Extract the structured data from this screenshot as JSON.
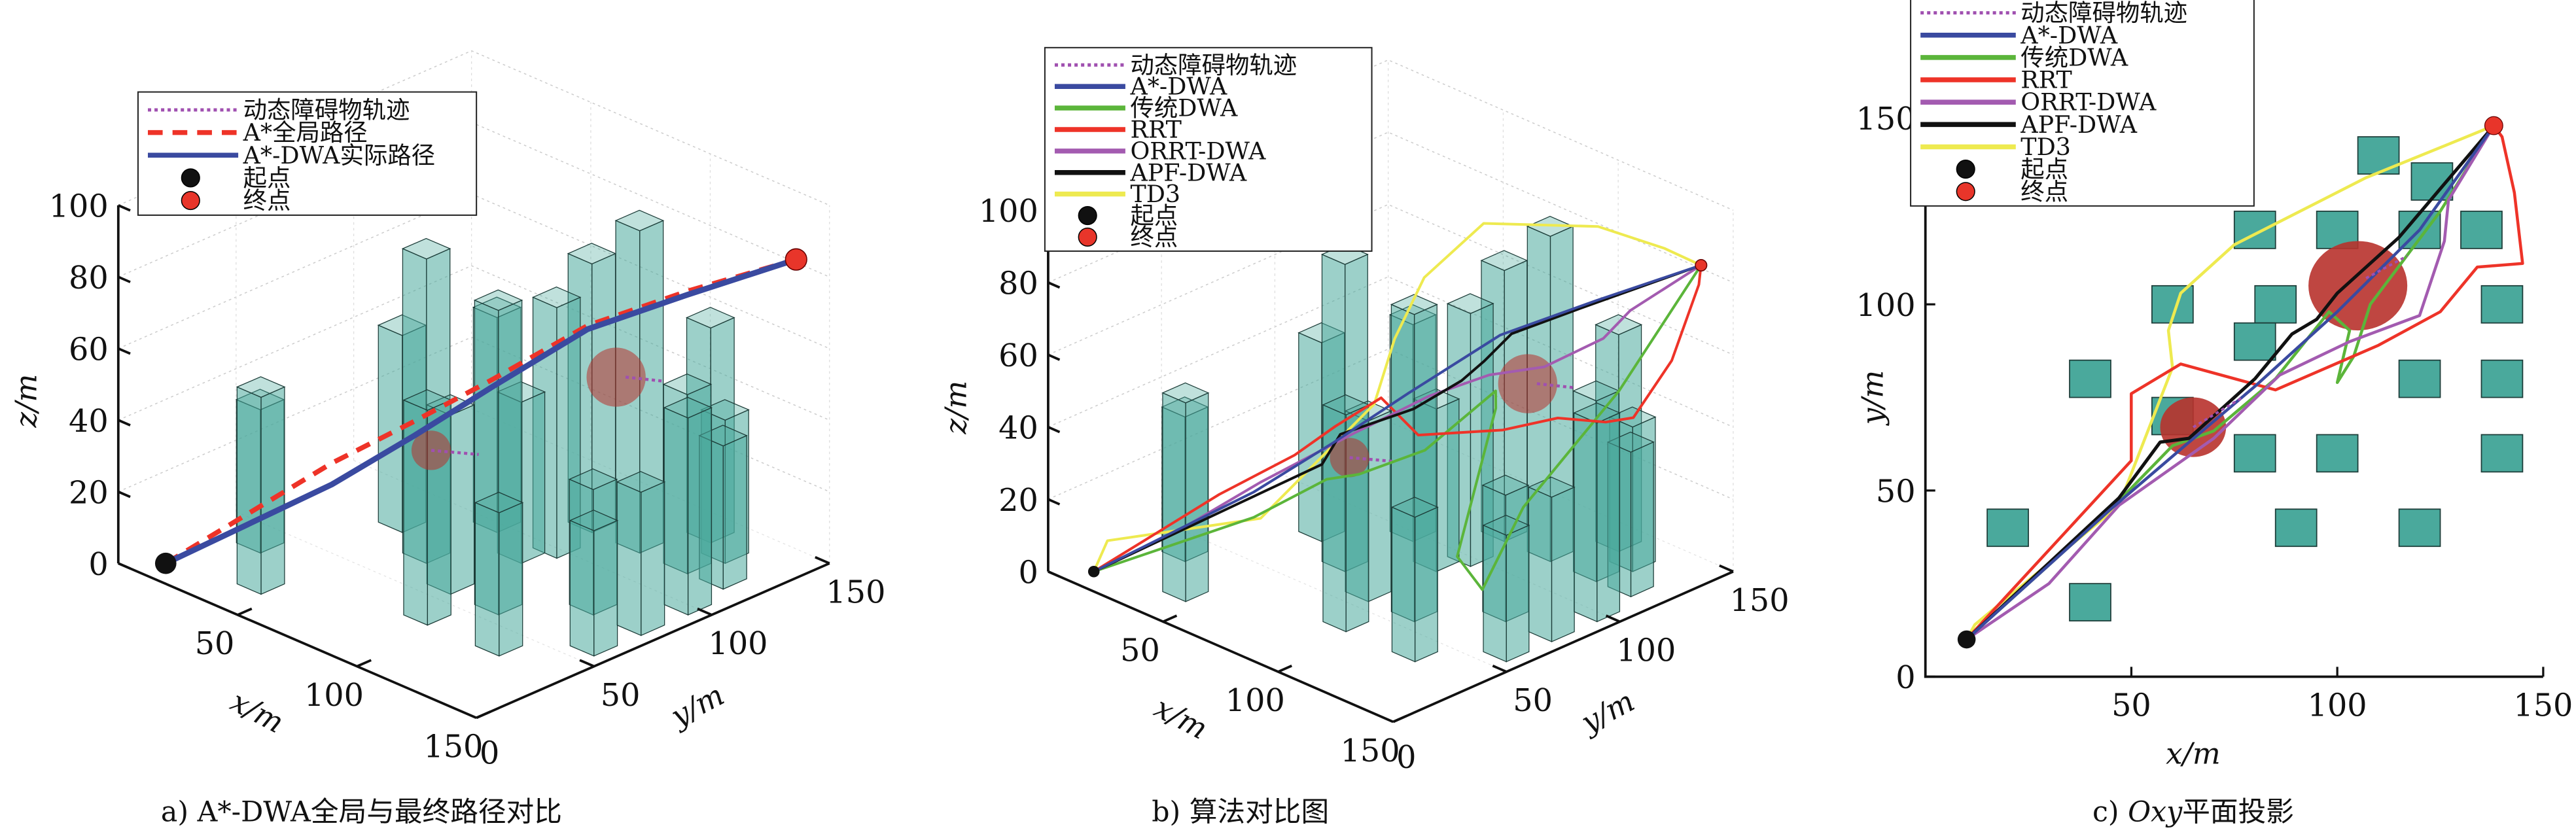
{
  "colors": {
    "obstacle": "#4aa99c",
    "obstacle_edge": "#1d3d39",
    "dynamic_obstacle": "#b8322c",
    "dynamic_track": "#a050b0",
    "astar_global": "#ee3328",
    "astar_dwa": "#3a4aa0",
    "traditional_dwa": "#5bb53a",
    "rrt": "#ee3328",
    "orrt_dwa": "#a35bb0",
    "apf_dwa": "#111111",
    "td3": "#eeea50",
    "start": "#111111",
    "goal": "#e8352a"
  },
  "chart_data": [
    {
      "type": "line3d",
      "caption": "a) A*-DWA全局与最终路径对比",
      "xlabel": "x/m",
      "ylabel": "y/m",
      "zlabel": "z/m",
      "xlim": [
        0,
        150
      ],
      "ylim": [
        0,
        150
      ],
      "zlim": [
        0,
        100
      ],
      "xticks": [
        50,
        100,
        150
      ],
      "yticks": [
        0,
        50,
        100,
        150
      ],
      "zticks": [
        0,
        20,
        40,
        60,
        80,
        100
      ],
      "grid": true,
      "legend": [
        {
          "label": "动态障碍物轨迹",
          "style": "dotted",
          "color_key": "dynamic_track"
        },
        {
          "label": "A*全局路径",
          "style": "dashed",
          "color_key": "astar_global"
        },
        {
          "label": "A*-DWA实际路径",
          "style": "solid",
          "color_key": "astar_dwa"
        },
        {
          "label": "起点",
          "style": "marker",
          "color_key": "start"
        },
        {
          "label": "终点",
          "style": "marker",
          "color_key": "goal"
        }
      ],
      "series": [
        {
          "name": "A*全局路径",
          "style": "dashed",
          "color_key": "astar_global",
          "width": 3,
          "x": [
            10,
            45,
            63,
            80,
            100,
            120,
            138
          ],
          "y": [
            10,
            45,
            62,
            78,
            98,
            120,
            148
          ],
          "z": [
            0,
            28,
            40,
            52,
            67,
            76,
            82
          ]
        },
        {
          "name": "A*-DWA实际路径",
          "style": "solid",
          "color_key": "astar_dwa",
          "width": 3.5,
          "x": [
            10,
            45,
            63,
            80,
            100,
            120,
            138
          ],
          "y": [
            10,
            45,
            62,
            78,
            98,
            120,
            148
          ],
          "z": [
            0,
            22,
            36,
            50,
            66,
            75,
            82
          ]
        }
      ]
    },
    {
      "type": "line3d",
      "caption": "b) 算法对比图",
      "xlabel": "x/m",
      "ylabel": "y/m",
      "zlabel": "z/m",
      "xlim": [
        0,
        150
      ],
      "ylim": [
        0,
        150
      ],
      "zlim": [
        0,
        100
      ],
      "xticks": [
        50,
        100,
        150
      ],
      "yticks": [
        0,
        50,
        100,
        150
      ],
      "zticks": [
        0,
        20,
        40,
        60,
        80,
        100
      ],
      "grid": true,
      "legend": [
        {
          "label": "动态障碍物轨迹",
          "style": "dotted",
          "color_key": "dynamic_track"
        },
        {
          "label": "A*-DWA",
          "style": "solid",
          "color_key": "astar_dwa"
        },
        {
          "label": "传统DWA",
          "style": "solid",
          "color_key": "traditional_dwa"
        },
        {
          "label": "RRT",
          "style": "solid",
          "color_key": "rrt"
        },
        {
          "label": "ORRT-DWA",
          "style": "solid",
          "color_key": "orrt_dwa"
        },
        {
          "label": "APF-DWA",
          "style": "solid",
          "color_key": "apf_dwa"
        },
        {
          "label": "TD3",
          "style": "solid",
          "color_key": "td3"
        },
        {
          "label": "起点",
          "style": "marker",
          "color_key": "start"
        },
        {
          "label": "终点",
          "style": "marker",
          "color_key": "goal"
        }
      ],
      "series": [
        {
          "name": "TD3",
          "color_key": "td3",
          "x": [
            10,
            12,
            47,
            60,
            59,
            62,
            75,
            107,
            127,
            138
          ],
          "y": [
            10,
            14,
            46,
            83,
            93,
            103,
            116,
            134,
            143,
            148
          ],
          "z": [
            0,
            8,
            15,
            40,
            55,
            70,
            85,
            88,
            85,
            82
          ]
        },
        {
          "name": "传统DWA",
          "color_key": "traditional_dwa",
          "x": [
            10,
            45,
            60,
            70,
            85,
            98,
            103,
            100,
            104,
            108,
            125,
            138
          ],
          "y": [
            10,
            45,
            62,
            66,
            80,
            98,
            93,
            79,
            86,
            100,
            125,
            148
          ],
          "z": [
            0,
            15,
            25,
            28,
            35,
            50,
            48,
            10,
            0,
            20,
            50,
            82
          ]
        },
        {
          "name": "RRT",
          "color_key": "rrt",
          "x": [
            10,
            20,
            35,
            50,
            50,
            62,
            85,
            110,
            125,
            134,
            145,
            143,
            140,
            138
          ],
          "y": [
            10,
            22,
            40,
            58,
            76,
            84,
            77,
            89,
            98,
            110,
            111,
            130,
            145,
            148
          ],
          "z": [
            0,
            8,
            20,
            30,
            33,
            42,
            40,
            45,
            50,
            48,
            52,
            62,
            78,
            82
          ]
        },
        {
          "name": "ORRT-DWA",
          "color_key": "orrt_dwa",
          "x": [
            10,
            30,
            47,
            70,
            86,
            103,
            120,
            126,
            127,
            138
          ],
          "y": [
            10,
            25,
            46,
            64,
            81,
            90,
            97,
            117,
            128,
            148
          ],
          "z": [
            0,
            12,
            25,
            40,
            50,
            58,
            63,
            67,
            72,
            82
          ]
        },
        {
          "name": "APF-DWA",
          "color_key": "apf_dwa",
          "x": [
            10,
            47,
            57,
            64,
            80,
            89,
            95,
            100,
            115,
            138
          ],
          "y": [
            10,
            48,
            63,
            64,
            80,
            92,
            96,
            103,
            118,
            148
          ],
          "z": [
            0,
            22,
            28,
            38,
            45,
            52,
            58,
            65,
            72,
            82
          ]
        },
        {
          "name": "A*-DWA",
          "color_key": "astar_dwa",
          "x": [
            10,
            45,
            63,
            80,
            100,
            120,
            138
          ],
          "y": [
            10,
            45,
            62,
            78,
            98,
            120,
            148
          ],
          "z": [
            0,
            22,
            36,
            50,
            66,
            75,
            82
          ]
        }
      ]
    },
    {
      "type": "line",
      "caption_prefix": "c) ",
      "caption_italic": "Oxy",
      "caption_suffix": "平面投影",
      "xlabel": "x/m",
      "ylabel": "y/m",
      "xlim": [
        0,
        150
      ],
      "ylim": [
        0,
        150
      ],
      "xticks": [
        50,
        100,
        150
      ],
      "yticks": [
        0,
        50,
        100,
        150
      ],
      "grid": false,
      "legend_ref": 1
    }
  ],
  "scene": {
    "start": [
      10,
      10,
      0
    ],
    "goal": [
      138,
      148,
      82
    ],
    "obstacle_size": 10,
    "obstacles": [
      {
        "x": 110,
        "y": 140,
        "h": 60
      },
      {
        "x": 123,
        "y": 133,
        "h": 40
      },
      {
        "x": 80,
        "y": 120,
        "h": 75
      },
      {
        "x": 100,
        "y": 120,
        "h": 90
      },
      {
        "x": 120,
        "y": 120,
        "h": 50
      },
      {
        "x": 135,
        "y": 120,
        "h": 40
      },
      {
        "x": 60,
        "y": 100,
        "h": 60
      },
      {
        "x": 85,
        "y": 100,
        "h": 70
      },
      {
        "x": 140,
        "y": 100,
        "h": 55
      },
      {
        "x": 80,
        "y": 90,
        "h": 45
      },
      {
        "x": 40,
        "y": 80,
        "h": 55
      },
      {
        "x": 120,
        "y": 80,
        "h": 35
      },
      {
        "x": 140,
        "y": 80,
        "h": 40
      },
      {
        "x": 60,
        "y": 70,
        "h": 85
      },
      {
        "x": 80,
        "y": 60,
        "h": 50
      },
      {
        "x": 100,
        "y": 60,
        "h": 85
      },
      {
        "x": 140,
        "y": 60,
        "h": 35
      },
      {
        "x": 20,
        "y": 40,
        "h": 40
      },
      {
        "x": 90,
        "y": 40,
        "h": 60
      },
      {
        "x": 120,
        "y": 40,
        "h": 40
      },
      {
        "x": 40,
        "y": 20,
        "h": 55
      }
    ],
    "dynamic_obstacles": [
      {
        "center": [
          65,
          67,
          31
        ],
        "r": 8,
        "track": {
          "x": [
            65,
            77
          ],
          "y": [
            67,
            75
          ],
          "z": [
            31,
            31
          ]
        }
      },
      {
        "center": [
          105,
          105,
          52
        ],
        "r": 12,
        "track": {
          "x": [
            107,
            117
          ],
          "y": [
            107,
            113
          ],
          "z": [
            52,
            52
          ]
        }
      }
    ]
  }
}
